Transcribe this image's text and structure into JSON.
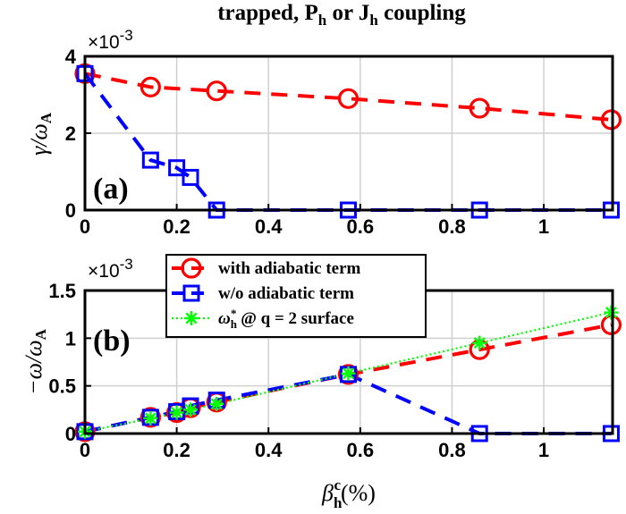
{
  "title": "trapped, P_h or J_h coupling",
  "chart_data": [
    {
      "panel_label": "(a)",
      "type": "line",
      "ylabel": "γ/ω_A",
      "y_exponent": "×10⁻³",
      "xlim": [
        0,
        1.15
      ],
      "ylim": [
        0,
        4
      ],
      "x_ticks": [
        "0",
        "0.2",
        "0.4",
        "0.6",
        "0.8",
        "1"
      ],
      "y_ticks": [
        "0",
        "2",
        "4"
      ],
      "grid": true,
      "series": [
        {
          "name": "with adiabatic term",
          "color": "#ff0000",
          "marker": "circle",
          "line": "dashed",
          "points": [
            [
              0,
              3.55
            ],
            [
              0.143,
              3.2
            ],
            [
              0.287,
              3.1
            ],
            [
              0.574,
              2.9
            ],
            [
              0.86,
              2.65
            ],
            [
              1.147,
              2.35
            ]
          ]
        },
        {
          "name": "w/o adiabatic term",
          "color": "#0000ff",
          "marker": "square",
          "line": "dashed",
          "points": [
            [
              0,
              3.55
            ],
            [
              0.143,
              1.3
            ],
            [
              0.2,
              1.1
            ],
            [
              0.23,
              0.85
            ],
            [
              0.287,
              0
            ],
            [
              0.574,
              0
            ],
            [
              0.86,
              0
            ],
            [
              1.147,
              0
            ]
          ]
        }
      ]
    },
    {
      "panel_label": "(b)",
      "type": "line",
      "ylabel": "−ω/ω_A",
      "xlabel": "β_h^c(%)",
      "y_exponent": "×10⁻³",
      "xlim": [
        0,
        1.15
      ],
      "ylim": [
        0,
        1.5
      ],
      "x_ticks": [
        "0",
        "0.2",
        "0.4",
        "0.6",
        "0.8",
        "1"
      ],
      "y_ticks": [
        "0",
        "0.5",
        "1",
        "1.5"
      ],
      "grid": true,
      "legend": {
        "position": "top-left",
        "entries": [
          "with adiabatic term",
          "w/o adiabatic term",
          "ω_h^* @ q = 2 surface"
        ]
      },
      "series": [
        {
          "name": "with adiabatic term",
          "color": "#ff0000",
          "marker": "circle",
          "line": "dashed",
          "points": [
            [
              0,
              0.02
            ],
            [
              0.143,
              0.17
            ],
            [
              0.2,
              0.22
            ],
            [
              0.23,
              0.27
            ],
            [
              0.287,
              0.33
            ],
            [
              0.574,
              0.62
            ],
            [
              0.86,
              0.88
            ],
            [
              1.147,
              1.14
            ]
          ]
        },
        {
          "name": "w/o adiabatic term",
          "color": "#0000ff",
          "marker": "square",
          "line": "dashed",
          "points": [
            [
              0,
              0.02
            ],
            [
              0.143,
              0.17
            ],
            [
              0.2,
              0.23
            ],
            [
              0.23,
              0.29
            ],
            [
              0.287,
              0.35
            ],
            [
              0.574,
              0.62
            ],
            [
              0.86,
              0
            ],
            [
              1.147,
              0
            ]
          ]
        },
        {
          "name": "ω_h^* @ q = 2 surface",
          "color": "#00ff00",
          "marker": "star",
          "line": "dotted",
          "points": [
            [
              0,
              0.02
            ],
            [
              0.143,
              0.16
            ],
            [
              0.2,
              0.22
            ],
            [
              0.23,
              0.25
            ],
            [
              0.287,
              0.31
            ],
            [
              0.574,
              0.63
            ],
            [
              0.86,
              0.95
            ],
            [
              1.147,
              1.27
            ]
          ]
        }
      ]
    }
  ]
}
